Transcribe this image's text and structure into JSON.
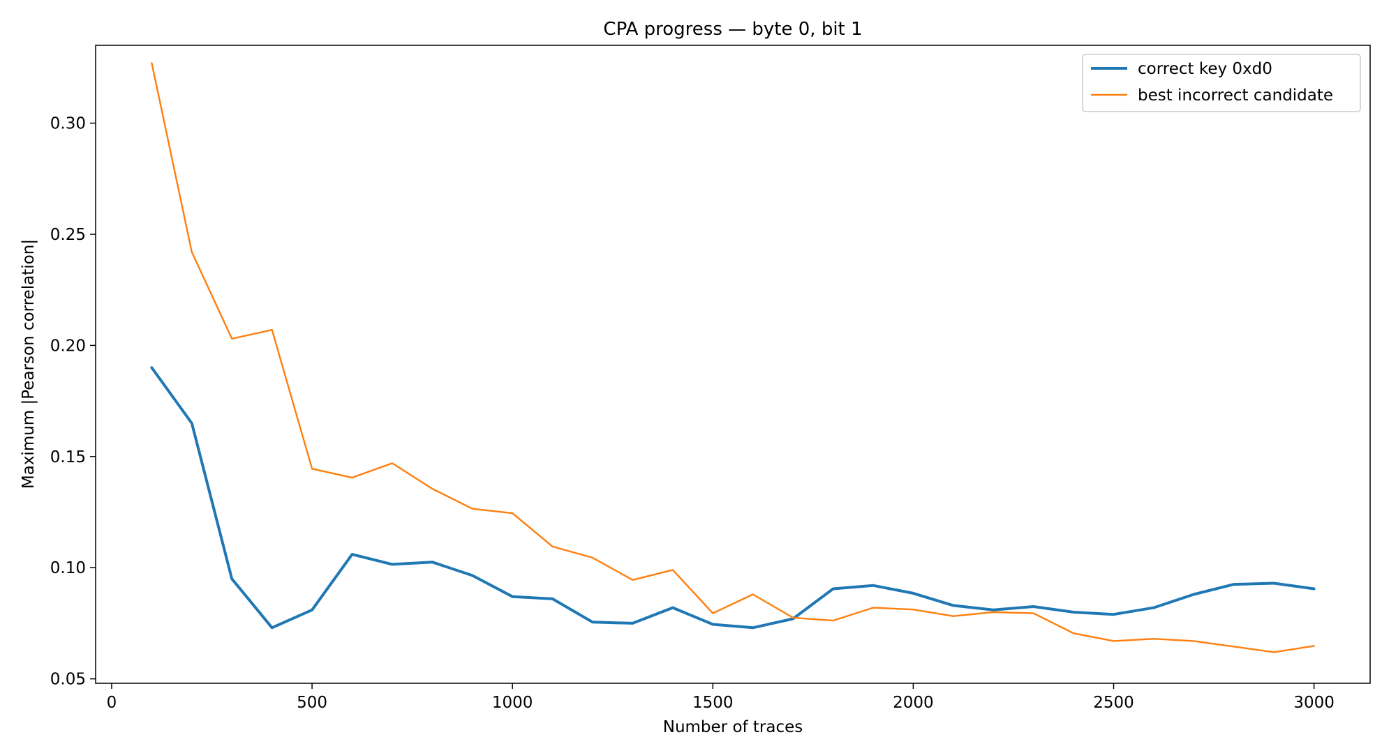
{
  "chart_data": {
    "type": "line",
    "title": "CPA progress — byte 0, bit 1",
    "xlabel": "Number of traces",
    "ylabel": "Maximum |Pearson correlation|",
    "xlim": [
      -40,
      3140
    ],
    "ylim": [
      0.048,
      0.335
    ],
    "xticks": [
      0,
      500,
      1000,
      1500,
      2000,
      2500,
      3000
    ],
    "yticks": [
      0.05,
      0.1,
      0.15,
      0.2,
      0.25,
      0.3
    ],
    "ytick_labels": [
      "0.05",
      "0.10",
      "0.15",
      "0.20",
      "0.25",
      "0.30"
    ],
    "grid": false,
    "legend_position": "top-right",
    "x": [
      100,
      200,
      300,
      400,
      500,
      600,
      700,
      800,
      900,
      1000,
      1100,
      1200,
      1300,
      1400,
      1500,
      1600,
      1700,
      1800,
      1900,
      2000,
      2100,
      2200,
      2300,
      2400,
      2500,
      2600,
      2700,
      2800,
      2900,
      3000
    ],
    "series": [
      {
        "name": "correct key 0xd0",
        "color": "#1f77b4",
        "line_width": "thick",
        "values": [
          0.19,
          0.165,
          0.095,
          0.073,
          0.081,
          0.106,
          0.1015,
          0.1025,
          0.0965,
          0.087,
          0.086,
          0.0755,
          0.075,
          0.082,
          0.0745,
          0.073,
          0.077,
          0.0905,
          0.092,
          0.0885,
          0.083,
          0.081,
          0.0825,
          0.08,
          0.079,
          0.082,
          0.088,
          0.0925,
          0.093,
          0.0905
        ]
      },
      {
        "name": "best incorrect candidate",
        "color": "#ff7f0e",
        "line_width": "normal",
        "values": [
          0.327,
          0.242,
          0.203,
          0.207,
          0.1445,
          0.1405,
          0.147,
          0.1355,
          0.1265,
          0.1245,
          0.1095,
          0.1045,
          0.0945,
          0.099,
          0.0795,
          0.088,
          0.0775,
          0.0762,
          0.082,
          0.0812,
          0.0782,
          0.08,
          0.0795,
          0.0705,
          0.067,
          0.068,
          0.067,
          0.0645,
          0.062,
          0.0648
        ]
      }
    ]
  }
}
